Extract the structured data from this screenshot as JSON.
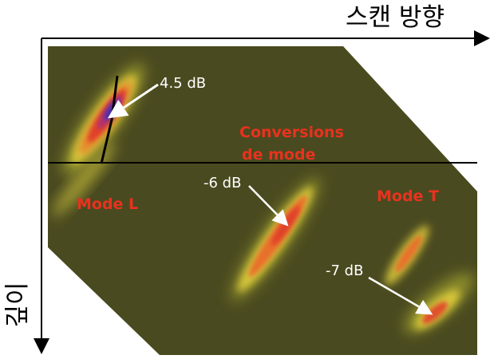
{
  "axes": {
    "x_label": "스캔 방향",
    "y_label": "깊이"
  },
  "annotations": {
    "db_top": "4.5 dB",
    "db_mid": "-6 dB",
    "db_right": "-7 dB",
    "conversions_line1": "Conversions",
    "conversions_line2": "de mode",
    "mode_l": "Mode L",
    "mode_t": "Mode T"
  },
  "colors": {
    "background": "#4a4a20",
    "annotation_red": "#e8321e",
    "annotation_white": "#ffffff",
    "axis": "#000000"
  }
}
